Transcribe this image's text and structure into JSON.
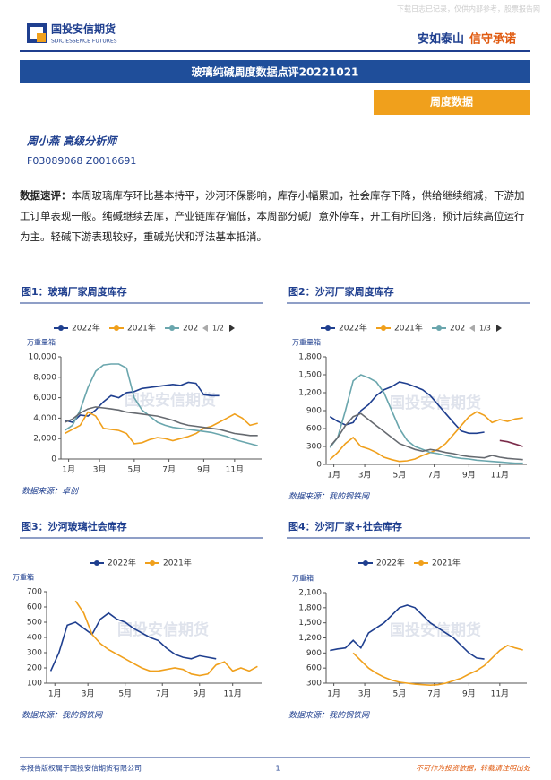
{
  "header": {
    "notice": "下载日志已记录，仅供内部参考，股票报告网",
    "logo_cn": "国投安信期货",
    "logo_en": "SDIC ESSENCE FUTURES",
    "slogan_a": "安如泰山",
    "slogan_b": "信守承诺"
  },
  "report_title": "玻璃纯碱周度数据点评20221021",
  "tag": "周度数据",
  "author": {
    "name": "周小燕  高级分析师",
    "ids": "F03089068  Z0016691"
  },
  "summary": {
    "label": "数据速评：",
    "text": "本周玻璃库存环比基本持平，沙河环保影响，库存小幅累加，社会库存下降，供给继续缩减，下游加工订单表现一般。纯碱继续去库，产业链库存偏低，本周部分碱厂意外停车，开工有所回落，预计后续高位运行为主。轻碱下游表现较好，重碱光伏和浮法基本抵消。"
  },
  "chart_data": [
    {
      "type": "line",
      "title": "图1：玻璃厂家周度库存",
      "y_label": "万重量箱",
      "legend_page": "1/2",
      "watermark": "国投安信期货",
      "source": "数据来源：卓创",
      "xlim": [
        0,
        52
      ],
      "xticks": [
        {
          "value": 2,
          "label": "1月"
        },
        {
          "value": 10,
          "label": "3月"
        },
        {
          "value": 19,
          "label": "5月"
        },
        {
          "value": 28,
          "label": "7月"
        },
        {
          "value": 37,
          "label": "9月"
        },
        {
          "value": 45,
          "label": "11月"
        }
      ],
      "ylim": [
        0,
        10000
      ],
      "yticks": [
        0,
        {
          "value": 2000,
          "label": "2,000"
        },
        {
          "value": 4000,
          "label": "4,000"
        },
        {
          "value": 6000,
          "label": "6,000"
        },
        {
          "value": 8000,
          "label": "8,000"
        },
        {
          "value": 10000,
          "label": "10,000"
        }
      ],
      "series": [
        {
          "name": "2022年",
          "color": "#1f3f8f",
          "x": [
            1,
            3,
            5,
            7,
            9,
            11,
            13,
            15,
            17,
            19,
            21,
            23,
            25,
            27,
            29,
            31,
            33,
            35,
            37,
            39,
            41
          ],
          "values": [
            3800,
            3600,
            4300,
            4200,
            4800,
            5600,
            6200,
            6000,
            6500,
            6600,
            6900,
            7000,
            7100,
            7200,
            7300,
            7200,
            7500,
            7400,
            6300,
            6200,
            6200
          ]
        },
        {
          "name": "2021年",
          "color": "#f0a01c",
          "x": [
            1,
            3,
            5,
            7,
            9,
            11,
            13,
            15,
            17,
            19,
            21,
            23,
            25,
            27,
            29,
            31,
            33,
            35,
            37,
            39,
            41,
            43,
            45,
            47,
            49,
            51
          ],
          "values": [
            2500,
            2900,
            3300,
            4600,
            4200,
            3000,
            2900,
            2800,
            2500,
            1500,
            1600,
            1900,
            2100,
            2000,
            1800,
            2000,
            2200,
            2500,
            3000,
            3200,
            3600,
            4000,
            4400,
            4000,
            3300,
            3500
          ]
        },
        {
          "name": "202",
          "color": "#6aa6ad",
          "x": [
            1,
            3,
            5,
            7,
            9,
            11,
            13,
            15,
            17,
            19,
            21,
            23,
            25,
            27,
            29,
            31,
            33,
            35,
            37,
            39,
            41,
            43,
            45,
            47,
            49,
            51
          ],
          "values": [
            2800,
            3300,
            4800,
            7000,
            8600,
            9200,
            9300,
            9300,
            8900,
            6000,
            4800,
            4200,
            3600,
            3300,
            3100,
            3000,
            2900,
            2800,
            2700,
            2600,
            2400,
            2200,
            1900,
            1700,
            1500,
            1300
          ]
        },
        {
          "color": "#666a70",
          "x": [
            1,
            3,
            5,
            7,
            9,
            11,
            13,
            15,
            17,
            19,
            21,
            23,
            25,
            27,
            29,
            31,
            33,
            35,
            37,
            39,
            41,
            43,
            45,
            47,
            49,
            51
          ],
          "values": [
            3600,
            3900,
            4500,
            4900,
            5100,
            5000,
            4900,
            4800,
            4600,
            4500,
            4400,
            4300,
            4200,
            4000,
            3800,
            3500,
            3300,
            3200,
            3100,
            3000,
            2900,
            2700,
            2500,
            2400,
            2300,
            2300
          ]
        }
      ]
    },
    {
      "type": "line",
      "title": "图2：沙河厂家周度库存",
      "y_label": "万重量箱",
      "legend_page": "1/3",
      "watermark": "国投安信期货",
      "source": "数据来源：我的钢铁网",
      "xlim": [
        0,
        52
      ],
      "xticks": [
        {
          "value": 2,
          "label": "1月"
        },
        {
          "value": 10,
          "label": "3月"
        },
        {
          "value": 19,
          "label": "5月"
        },
        {
          "value": 28,
          "label": "7月"
        },
        {
          "value": 37,
          "label": "9月"
        },
        {
          "value": 45,
          "label": "11月"
        }
      ],
      "ylim": [
        0,
        1800
      ],
      "yticks": [
        0,
        300,
        600,
        900,
        {
          "value": 1200,
          "label": "1,200"
        },
        {
          "value": 1500,
          "label": "1,500"
        },
        {
          "value": 1800,
          "label": "1,800"
        }
      ],
      "series": [
        {
          "name": "2022年",
          "color": "#1f3f8f",
          "x": [
            1,
            3,
            5,
            7,
            9,
            11,
            13,
            15,
            17,
            19,
            21,
            23,
            25,
            27,
            29,
            31,
            33,
            35,
            37,
            39,
            41
          ],
          "values": [
            800,
            720,
            660,
            700,
            900,
            1000,
            1150,
            1250,
            1300,
            1380,
            1350,
            1300,
            1250,
            1150,
            1000,
            850,
            700,
            560,
            520,
            520,
            540
          ]
        },
        {
          "name": "2021年",
          "color": "#f0a01c",
          "x": [
            1,
            3,
            5,
            7,
            9,
            11,
            13,
            15,
            17,
            19,
            21,
            23,
            25,
            27,
            29,
            31,
            33,
            35,
            37,
            39,
            41,
            43,
            45,
            47,
            49,
            51
          ],
          "values": [
            80,
            200,
            350,
            450,
            300,
            260,
            200,
            120,
            80,
            50,
            60,
            90,
            150,
            200,
            250,
            350,
            500,
            650,
            800,
            880,
            820,
            700,
            750,
            720,
            760,
            780
          ]
        },
        {
          "name": "202",
          "color": "#6aa6ad",
          "x": [
            1,
            3,
            5,
            7,
            9,
            11,
            13,
            15,
            17,
            19,
            21,
            23,
            25,
            27,
            29,
            31,
            33,
            35,
            37,
            39,
            41,
            43,
            45,
            47,
            49,
            51
          ],
          "values": [
            280,
            450,
            900,
            1400,
            1500,
            1450,
            1380,
            1200,
            900,
            600,
            400,
            300,
            250,
            200,
            180,
            150,
            120,
            100,
            90,
            70,
            60,
            50,
            40,
            30,
            20,
            20
          ]
        },
        {
          "color": "#666a70",
          "x": [
            1,
            3,
            5,
            7,
            9,
            11,
            13,
            15,
            17,
            19,
            21,
            23,
            25,
            27,
            29,
            31,
            33,
            35,
            37,
            39,
            41,
            43,
            45,
            47,
            49,
            51
          ],
          "values": [
            300,
            450,
            650,
            800,
            850,
            750,
            650,
            550,
            450,
            350,
            300,
            250,
            220,
            250,
            230,
            200,
            180,
            150,
            130,
            120,
            110,
            150,
            120,
            100,
            90,
            80
          ]
        },
        {
          "color": "#7b2c4a",
          "x": [
            45,
            47,
            49,
            51
          ],
          "values": [
            400,
            380,
            340,
            300
          ]
        }
      ]
    },
    {
      "type": "line",
      "title": "图3：沙河玻璃社会库存",
      "y_label": "万重箱",
      "watermark": "国投安信期货",
      "source": "数据来源：我的钢铁网",
      "xlim": [
        0,
        52
      ],
      "xticks": [
        {
          "value": 2,
          "label": "1月"
        },
        {
          "value": 10,
          "label": "3月"
        },
        {
          "value": 19,
          "label": "5月"
        },
        {
          "value": 28,
          "label": "7月"
        },
        {
          "value": 37,
          "label": "9月"
        },
        {
          "value": 45,
          "label": "11月"
        }
      ],
      "ylim": [
        100,
        700
      ],
      "yticks": [
        100,
        200,
        300,
        400,
        500,
        600,
        700
      ],
      "series": [
        {
          "name": "2022年",
          "color": "#1f3f8f",
          "x": [
            1,
            3,
            5,
            7,
            9,
            11,
            13,
            15,
            17,
            19,
            21,
            23,
            25,
            27,
            29,
            31,
            33,
            35,
            37,
            39,
            41
          ],
          "values": [
            180,
            300,
            480,
            500,
            460,
            420,
            520,
            560,
            520,
            500,
            460,
            430,
            400,
            380,
            330,
            290,
            270,
            260,
            280,
            270,
            260
          ]
        },
        {
          "name": "2021年",
          "color": "#f0a01c",
          "x": [
            7,
            9,
            11,
            13,
            15,
            17,
            19,
            21,
            23,
            25,
            27,
            29,
            31,
            33,
            35,
            37,
            39,
            41,
            43,
            45,
            47,
            49,
            51
          ],
          "values": [
            640,
            560,
            420,
            360,
            320,
            290,
            260,
            230,
            200,
            180,
            180,
            190,
            200,
            190,
            160,
            150,
            160,
            220,
            240,
            180,
            200,
            180,
            210
          ]
        }
      ]
    },
    {
      "type": "line",
      "title": "图4：沙河厂家+社会库存",
      "y_label": "万重箱",
      "watermark": "国投安信期货",
      "source": "数据来源：我的钢铁网",
      "xlim": [
        0,
        52
      ],
      "xticks": [
        {
          "value": 2,
          "label": "1月"
        },
        {
          "value": 10,
          "label": "3月"
        },
        {
          "value": 19,
          "label": "5月"
        },
        {
          "value": 28,
          "label": "7月"
        },
        {
          "value": 37,
          "label": "9月"
        },
        {
          "value": 45,
          "label": "11月"
        }
      ],
      "ylim": [
        300,
        2100
      ],
      "yticks": [
        300,
        600,
        900,
        {
          "value": 1200,
          "label": "1,200"
        },
        {
          "value": 1500,
          "label": "1,500"
        },
        {
          "value": 1800,
          "label": "1,800"
        },
        {
          "value": 2100,
          "label": "2,100"
        }
      ],
      "series": [
        {
          "name": "2022年",
          "color": "#1f3f8f",
          "x": [
            1,
            3,
            5,
            7,
            9,
            11,
            13,
            15,
            17,
            19,
            21,
            23,
            25,
            27,
            29,
            31,
            33,
            35,
            37,
            39,
            41
          ],
          "values": [
            950,
            980,
            1000,
            1150,
            1000,
            1300,
            1400,
            1500,
            1650,
            1800,
            1850,
            1800,
            1650,
            1500,
            1400,
            1300,
            1200,
            1050,
            900,
            800,
            780
          ]
        },
        {
          "name": "2021年",
          "color": "#f0a01c",
          "x": [
            7,
            9,
            11,
            13,
            15,
            17,
            19,
            21,
            23,
            25,
            27,
            29,
            31,
            33,
            35,
            37,
            39,
            41,
            43,
            45,
            47,
            49,
            51
          ],
          "values": [
            900,
            750,
            600,
            500,
            420,
            360,
            320,
            300,
            280,
            270,
            260,
            270,
            300,
            350,
            400,
            480,
            550,
            650,
            800,
            950,
            1050,
            1000,
            960
          ]
        }
      ]
    }
  ],
  "footer": {
    "left": "本报告版权属于国投安信期货有限公司",
    "page": "1",
    "right": "不可作为投资依据，转载请注明出处"
  }
}
